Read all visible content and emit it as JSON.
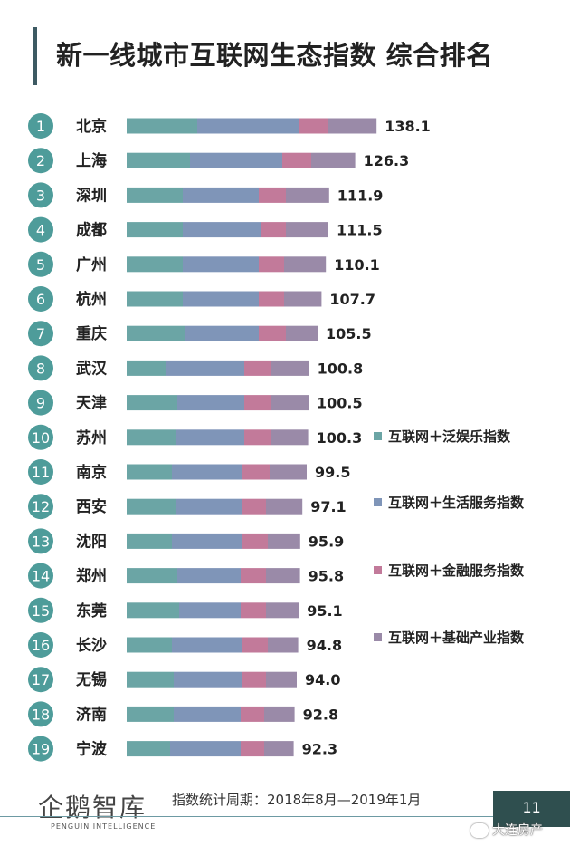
{
  "title": "新一线城市互联网生态指数 综合排名",
  "footer": {
    "period": "指数统计周期：2018年8月—2019年1月",
    "logo_cn": "企鹅智库",
    "logo_en": "PENGUIN INTELLIGENCE",
    "page_number": "11",
    "watermark": "大连房产"
  },
  "colors": {
    "entertainment": "#6ba5a5",
    "life_service": "#7f95b8",
    "finance": "#c27a9a",
    "infrastructure": "#9a8aa8",
    "rank_circle": "#4e9c9a",
    "title_bar": "#3d5a63"
  },
  "chart_data": {
    "type": "bar",
    "orientation": "horizontal",
    "stacked": true,
    "legend_position": "right",
    "grid": false,
    "title": "新一线城市互联网生态指数 综合排名",
    "categories": [
      "北京",
      "上海",
      "深圳",
      "成都",
      "广州",
      "杭州",
      "重庆",
      "武汉",
      "天津",
      "苏州",
      "南京",
      "西安",
      "沈阳",
      "郑州",
      "东莞",
      "长沙",
      "无锡",
      "济南",
      "宁波"
    ],
    "ranks": [
      "1",
      "2",
      "3",
      "4",
      "5",
      "6",
      "7",
      "8",
      "9",
      "10",
      "11",
      "12",
      "13",
      "14",
      "15",
      "16",
      "17",
      "18",
      "19"
    ],
    "totals": [
      "138.1",
      "126.3",
      "111.9",
      "111.5",
      "110.1",
      "107.7",
      "105.5",
      "100.8",
      "100.5",
      "100.3",
      "99.5",
      "97.1",
      "95.9",
      "95.8",
      "95.1",
      "94.8",
      "94.0",
      "92.8",
      "92.3"
    ],
    "series": [
      {
        "name": "互联网＋泛娱乐指数",
        "color": "#6ba5a5",
        "values": [
          39,
          35,
          31,
          31,
          31,
          31,
          32,
          22,
          28,
          27,
          25,
          27,
          25,
          28,
          29,
          25,
          26,
          26,
          24
        ]
      },
      {
        "name": "互联网＋生活服务指数",
        "color": "#7f95b8",
        "values": [
          56,
          51,
          42,
          43,
          42,
          42,
          41,
          43,
          37,
          38,
          39,
          37,
          39,
          35,
          34,
          39,
          38,
          37,
          39
        ]
      },
      {
        "name": "互联网＋金融服务指数",
        "color": "#c27a9a",
        "values": [
          16,
          16,
          15,
          14,
          14,
          14,
          15,
          15,
          15,
          15,
          15,
          13,
          14,
          14,
          14,
          14,
          13,
          13,
          13
        ]
      },
      {
        "name": "互联网＋基础产业指数",
        "color": "#9a8aa8",
        "values": [
          27.1,
          24.3,
          23.9,
          23.5,
          23.1,
          20.7,
          17.5,
          20.8,
          20.5,
          20.3,
          20.5,
          20.1,
          17.9,
          18.8,
          18.1,
          16.8,
          17.0,
          16.8,
          16.3
        ]
      }
    ]
  }
}
